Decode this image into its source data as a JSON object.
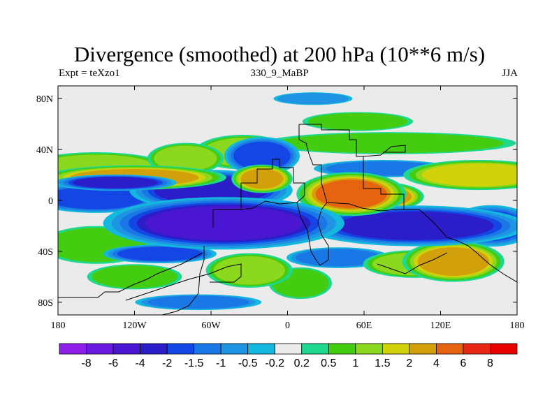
{
  "title": "Divergence (smoothed) at 200 hPa (10**6 m/s)",
  "subtitle_left": "Expt = teXzo1",
  "subtitle_center": "330_9_MaBP",
  "subtitle_right": "JJA",
  "chart_data": {
    "type": "heatmap",
    "projection": "cylindrical-equidistant",
    "variable": "Divergence (smoothed)",
    "level_hPa": 200,
    "units": "10**6 m/s",
    "season": "JJA",
    "x_range": [
      -180,
      180
    ],
    "y_range": [
      -90,
      90
    ],
    "x_ticks": [
      {
        "value": -180,
        "label": "180"
      },
      {
        "value": -120,
        "label": "120W"
      },
      {
        "value": -60,
        "label": "60W"
      },
      {
        "value": 0,
        "label": "0"
      },
      {
        "value": 60,
        "label": "60E"
      },
      {
        "value": 120,
        "label": "120E"
      },
      {
        "value": 180,
        "label": "180"
      }
    ],
    "y_ticks": [
      {
        "value": 80,
        "label": "80N"
      },
      {
        "value": 40,
        "label": "40N"
      },
      {
        "value": 0,
        "label": "0"
      },
      {
        "value": -40,
        "label": "40S"
      },
      {
        "value": -80,
        "label": "80S"
      }
    ],
    "colorbar": {
      "labels": [
        "-8",
        "-6",
        "-4",
        "-2",
        "-1.5",
        "-1",
        "-0.5",
        "-0.2",
        "0.2",
        "0.5",
        "1",
        "1.5",
        "2",
        "4",
        "6",
        "8"
      ],
      "levels": [
        -8,
        -6,
        -4,
        -2,
        -1.5,
        -1,
        -0.5,
        -0.2,
        0.2,
        0.5,
        1,
        1.5,
        2,
        4,
        6,
        8
      ],
      "colors": [
        "#8c1ee8",
        "#6a1ae0",
        "#4a16d2",
        "#2b1ec8",
        "#1446e6",
        "#1a78e6",
        "#1e94e2",
        "#14b8de",
        "#ebebeb",
        "#1ed890",
        "#44cc10",
        "#8cd81e",
        "#d2d20a",
        "#d2a00a",
        "#e6640f",
        "#e62814",
        "#e60000"
      ]
    },
    "fields": [
      {
        "lon": -150,
        "lat": 27,
        "rlon": 40,
        "rlat": 8,
        "value": 1.2
      },
      {
        "lon": -120,
        "lat": 18,
        "rlon": 45,
        "rlat": 6,
        "value": 2.5
      },
      {
        "lon": -80,
        "lat": 33,
        "rlon": 22,
        "rlat": 9,
        "value": 1.2
      },
      {
        "lon": -35,
        "lat": 38,
        "rlon": 28,
        "rlat": 10,
        "value": 1.1
      },
      {
        "lon": 80,
        "lat": 45,
        "rlon": 80,
        "rlat": 7,
        "value": 1.0
      },
      {
        "lon": 55,
        "lat": 62,
        "rlon": 35,
        "rlat": 6,
        "value": 0.6
      },
      {
        "lon": 150,
        "lat": 20,
        "rlon": 40,
        "rlat": 8,
        "value": 2.0
      },
      {
        "lon": -20,
        "lat": 17,
        "rlon": 15,
        "rlat": 7,
        "value": 3.0
      },
      {
        "lon": 50,
        "lat": 5,
        "rlon": 25,
        "rlat": 10,
        "value": 5.0
      },
      {
        "lon": 75,
        "lat": 3,
        "rlon": 20,
        "rlat": 7,
        "value": 3.0
      },
      {
        "lon": -150,
        "lat": 2,
        "rlon": 35,
        "rlat": 8,
        "value": -1.6
      },
      {
        "lon": -135,
        "lat": 14,
        "rlon": 30,
        "rlat": 4,
        "value": -2.5
      },
      {
        "lon": -60,
        "lat": 8,
        "rlon": 40,
        "rlat": 10,
        "value": -2.2
      },
      {
        "lon": -50,
        "lat": -18,
        "rlon": 55,
        "rlat": 12,
        "value": -5.0
      },
      {
        "lon": 100,
        "lat": -20,
        "rlon": 55,
        "rlat": 10,
        "value": -3.5
      },
      {
        "lon": 160,
        "lat": -20,
        "rlon": 25,
        "rlat": 12,
        "value": -1.5
      },
      {
        "lon": -20,
        "lat": 35,
        "rlon": 20,
        "rlat": 10,
        "value": -1.7
      },
      {
        "lon": 75,
        "lat": 25,
        "rlon": 40,
        "rlat": 5,
        "value": -1.2
      },
      {
        "lon": -150,
        "lat": -35,
        "rlon": 35,
        "rlat": 12,
        "value": 1.0
      },
      {
        "lon": -120,
        "lat": -60,
        "rlon": 30,
        "rlat": 8,
        "value": 0.8
      },
      {
        "lon": -30,
        "lat": -55,
        "rlon": 25,
        "rlat": 10,
        "value": 1.2
      },
      {
        "lon": 10,
        "lat": -65,
        "rlon": 20,
        "rlat": 10,
        "value": 0.6
      },
      {
        "lon": 100,
        "lat": -50,
        "rlon": 30,
        "rlat": 8,
        "value": 1.5
      },
      {
        "lon": 130,
        "lat": -48,
        "rlon": 25,
        "rlat": 10,
        "value": 2.5
      },
      {
        "lon": -100,
        "lat": -42,
        "rlon": 30,
        "rlat": 5,
        "value": -1.6
      },
      {
        "lon": 40,
        "lat": -45,
        "rlon": 30,
        "rlat": 6,
        "value": -1.2
      },
      {
        "lon": -70,
        "lat": -80,
        "rlon": 40,
        "rlat": 5,
        "value": -1.0
      },
      {
        "lon": 20,
        "lat": 80,
        "rlon": 25,
        "rlat": 4,
        "value": -0.8
      }
    ]
  }
}
